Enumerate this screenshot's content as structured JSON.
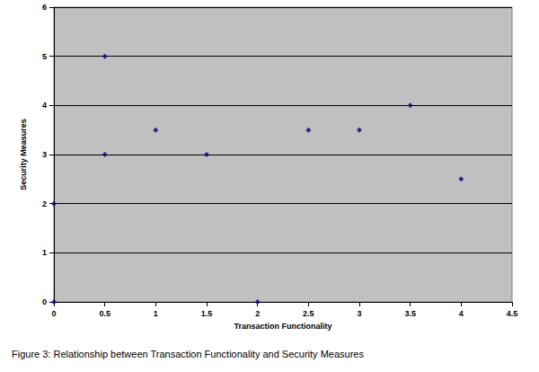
{
  "chart_data": {
    "type": "scatter",
    "title": "Figure 3: Relationship between Transaction Functionality and Security Measures",
    "x_label": "Transaction Functionality",
    "y_label": "Security Measures",
    "x": [
      0,
      0,
      0.5,
      0.5,
      1,
      1.5,
      2,
      2.5,
      3,
      3.5,
      4
    ],
    "values": [
      0,
      2,
      5,
      3,
      3.5,
      3,
      0,
      3.5,
      3.5,
      4,
      2.5
    ],
    "color": "#000080",
    "marker": "diamond",
    "xlim": [
      0,
      4.5
    ],
    "xticks": [
      0,
      0.5,
      1,
      1.5,
      2,
      2.5,
      3,
      3.5,
      4,
      4.5
    ],
    "ylim": [
      0,
      6
    ],
    "yticks": [
      0,
      1,
      2,
      3,
      4,
      5,
      6
    ],
    "grid": true
  }
}
